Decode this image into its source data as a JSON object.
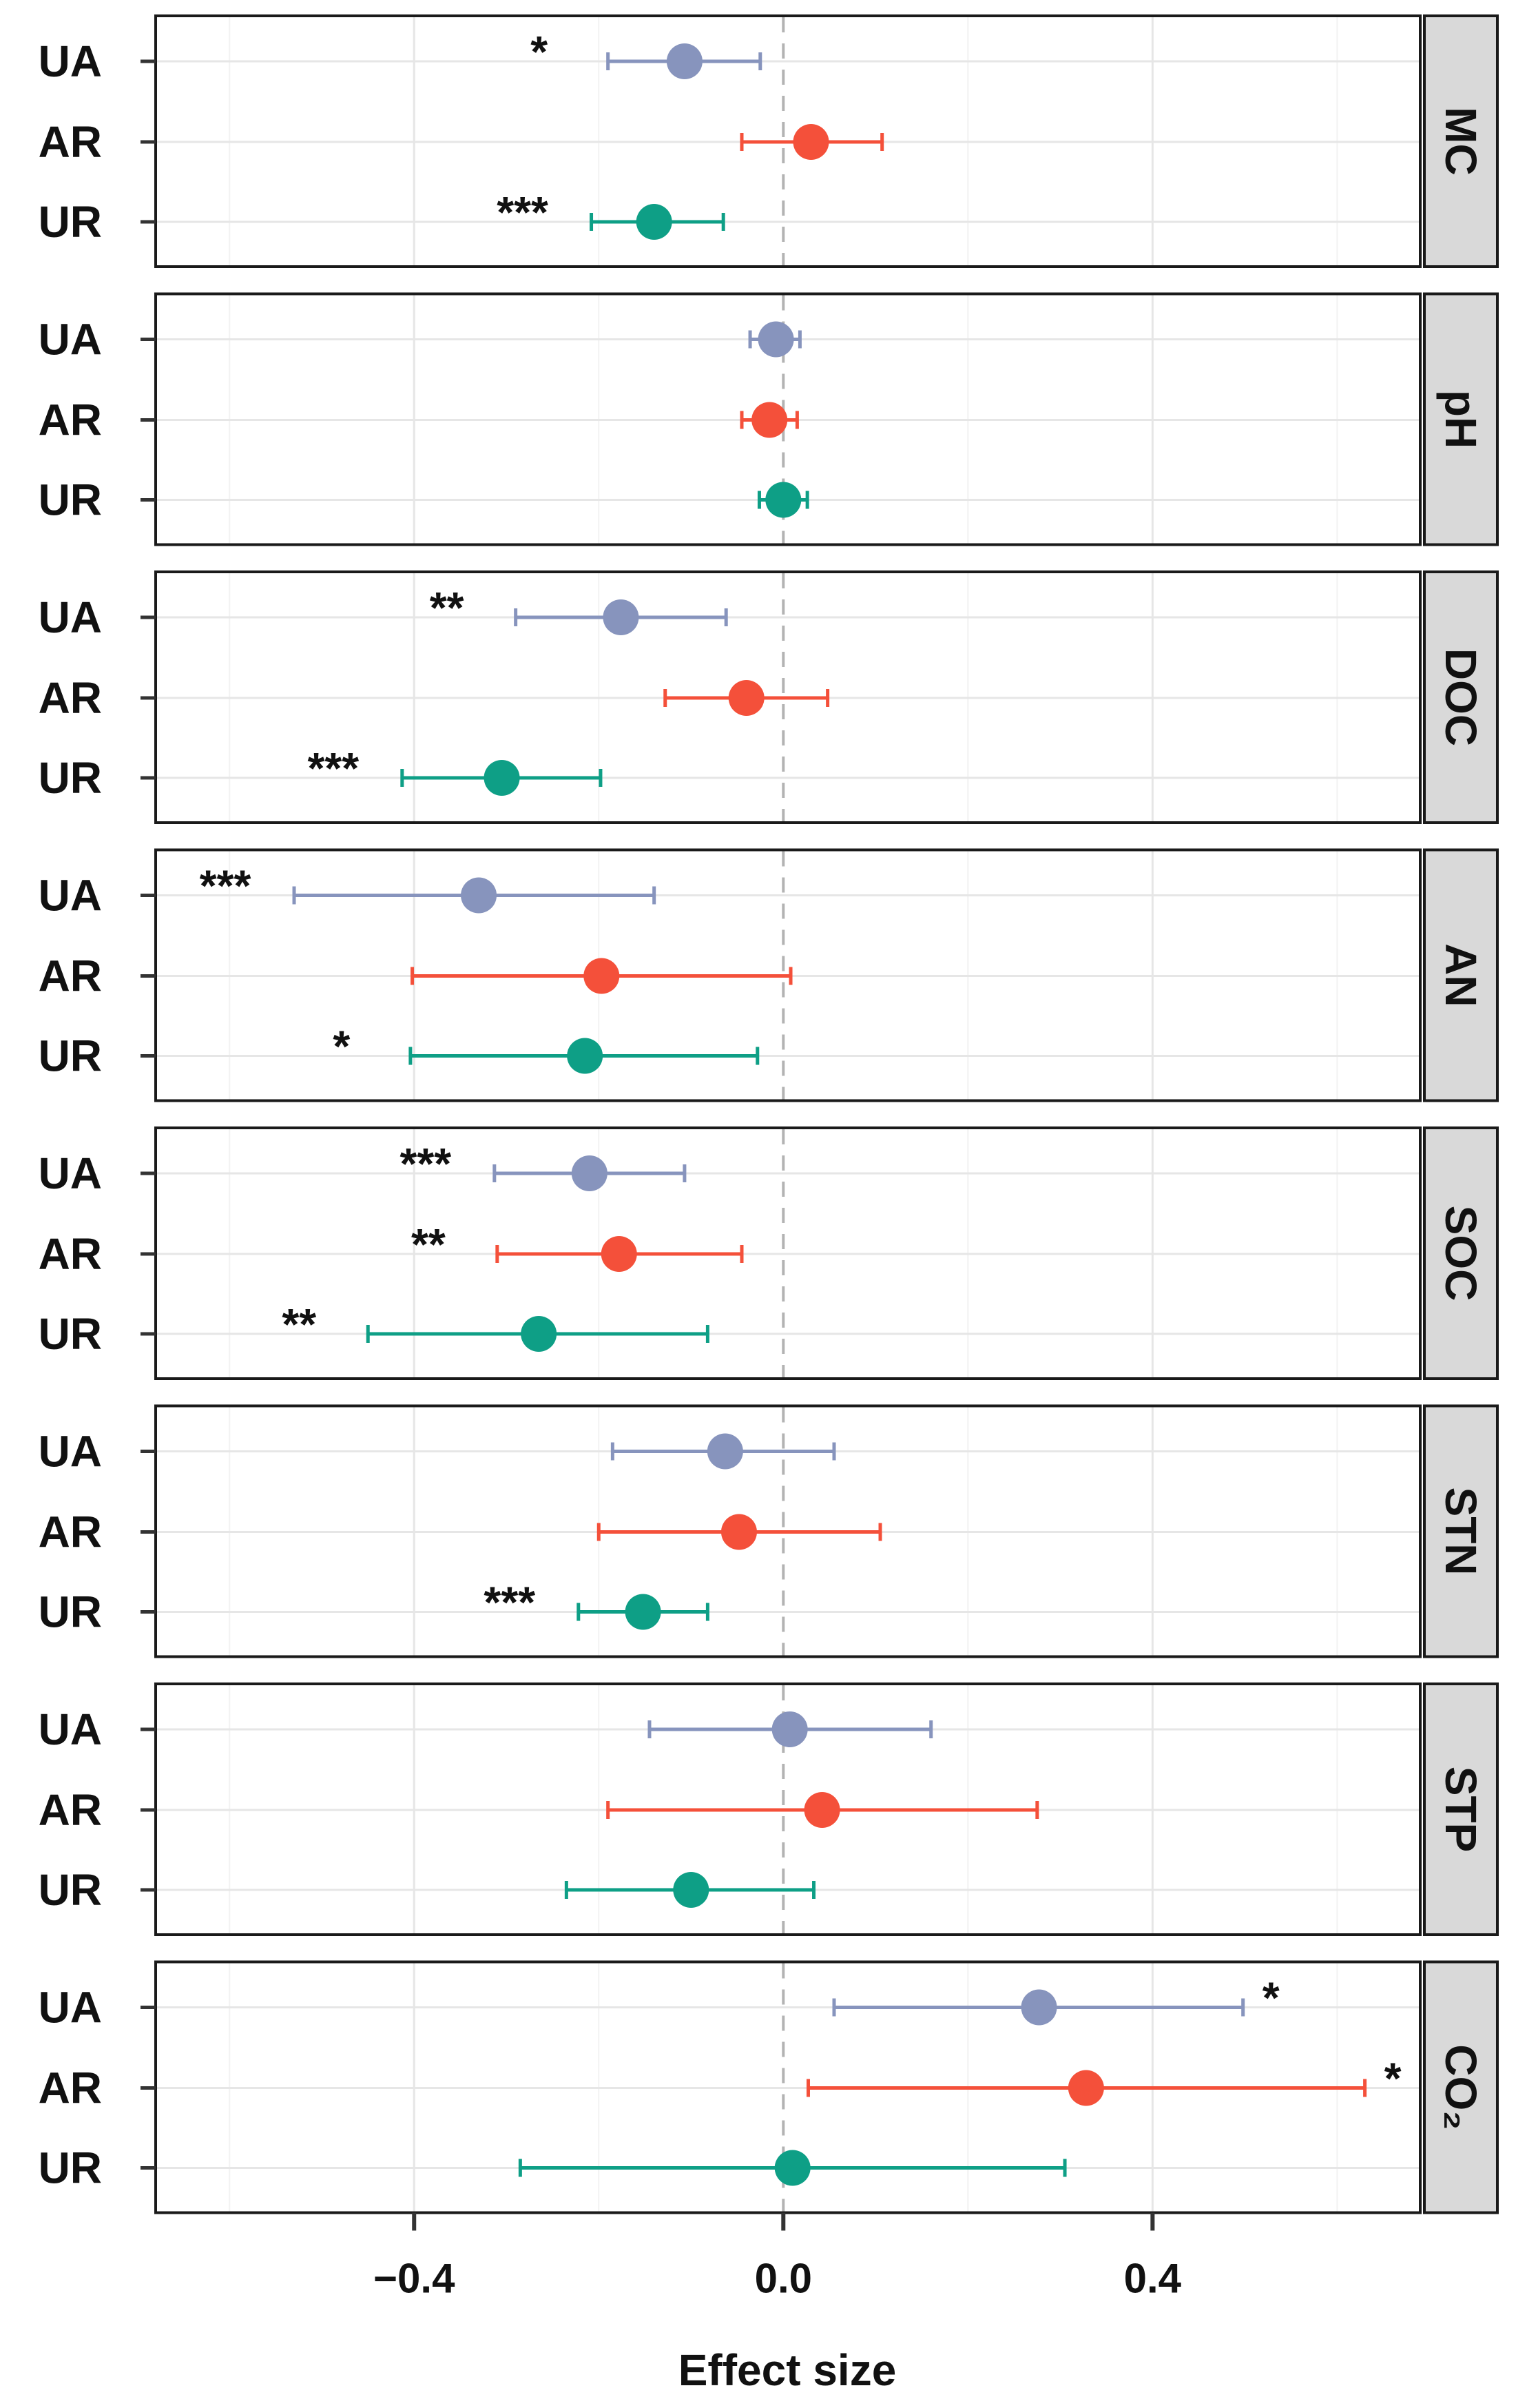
{
  "chart_data": {
    "type": "forest",
    "xlabel": "Effect size",
    "xlim": [
      -0.68,
      0.69
    ],
    "xticks": [
      -0.4,
      0.0,
      0.4
    ],
    "xtick_labels": [
      "−0.4",
      "0.0",
      "0.4"
    ],
    "minor_gridlines": [
      -0.6,
      -0.2,
      0.2,
      0.6
    ],
    "reference_line": 0.0,
    "categories": [
      "UA",
      "AR",
      "UR"
    ],
    "colors": {
      "UA": "#8794bd",
      "AR": "#f4503a",
      "UR": "#0e9f86"
    },
    "panels": [
      {
        "label": "MC",
        "rows": [
          {
            "cat": "UA",
            "est": -0.107,
            "lo": -0.19,
            "hi": -0.025,
            "sig": "*"
          },
          {
            "cat": "AR",
            "est": 0.03,
            "lo": -0.045,
            "hi": 0.107,
            "sig": ""
          },
          {
            "cat": "UR",
            "est": -0.14,
            "lo": -0.208,
            "hi": -0.065,
            "sig": "***"
          }
        ]
      },
      {
        "label": "pH",
        "rows": [
          {
            "cat": "UA",
            "est": -0.008,
            "lo": -0.036,
            "hi": 0.018,
            "sig": ""
          },
          {
            "cat": "AR",
            "est": -0.015,
            "lo": -0.045,
            "hi": 0.015,
            "sig": ""
          },
          {
            "cat": "UR",
            "est": 0.0,
            "lo": -0.026,
            "hi": 0.026,
            "sig": ""
          }
        ]
      },
      {
        "label": "DOC",
        "rows": [
          {
            "cat": "UA",
            "est": -0.176,
            "lo": -0.29,
            "hi": -0.062,
            "sig": "**"
          },
          {
            "cat": "AR",
            "est": -0.04,
            "lo": -0.128,
            "hi": 0.048,
            "sig": ""
          },
          {
            "cat": "UR",
            "est": -0.305,
            "lo": -0.413,
            "hi": -0.198,
            "sig": "***"
          }
        ]
      },
      {
        "label": "AN",
        "rows": [
          {
            "cat": "UA",
            "est": -0.33,
            "lo": -0.53,
            "hi": -0.14,
            "sig": "***"
          },
          {
            "cat": "AR",
            "est": -0.197,
            "lo": -0.402,
            "hi": 0.008,
            "sig": ""
          },
          {
            "cat": "UR",
            "est": -0.215,
            "lo": -0.404,
            "hi": -0.028,
            "sig": "*"
          }
        ]
      },
      {
        "label": "SOC",
        "rows": [
          {
            "cat": "UA",
            "est": -0.21,
            "lo": -0.313,
            "hi": -0.107,
            "sig": "***"
          },
          {
            "cat": "AR",
            "est": -0.178,
            "lo": -0.31,
            "hi": -0.045,
            "sig": "**"
          },
          {
            "cat": "UR",
            "est": -0.265,
            "lo": -0.45,
            "hi": -0.082,
            "sig": "**"
          }
        ]
      },
      {
        "label": "STN",
        "rows": [
          {
            "cat": "UA",
            "est": -0.063,
            "lo": -0.185,
            "hi": 0.055,
            "sig": ""
          },
          {
            "cat": "AR",
            "est": -0.048,
            "lo": -0.2,
            "hi": 0.105,
            "sig": ""
          },
          {
            "cat": "UR",
            "est": -0.152,
            "lo": -0.222,
            "hi": -0.082,
            "sig": "***"
          }
        ]
      },
      {
        "label": "STP",
        "rows": [
          {
            "cat": "UA",
            "est": 0.007,
            "lo": -0.145,
            "hi": 0.16,
            "sig": ""
          },
          {
            "cat": "AR",
            "est": 0.042,
            "lo": -0.19,
            "hi": 0.275,
            "sig": ""
          },
          {
            "cat": "UR",
            "est": -0.1,
            "lo": -0.235,
            "hi": 0.033,
            "sig": ""
          }
        ]
      },
      {
        "label": "CO₂",
        "rows": [
          {
            "cat": "UA",
            "est": 0.277,
            "lo": 0.055,
            "hi": 0.498,
            "sig": "*"
          },
          {
            "cat": "AR",
            "est": 0.328,
            "lo": 0.027,
            "hi": 0.63,
            "sig": "*"
          },
          {
            "cat": "UR",
            "est": 0.01,
            "lo": -0.285,
            "hi": 0.305,
            "sig": ""
          }
        ]
      }
    ]
  }
}
